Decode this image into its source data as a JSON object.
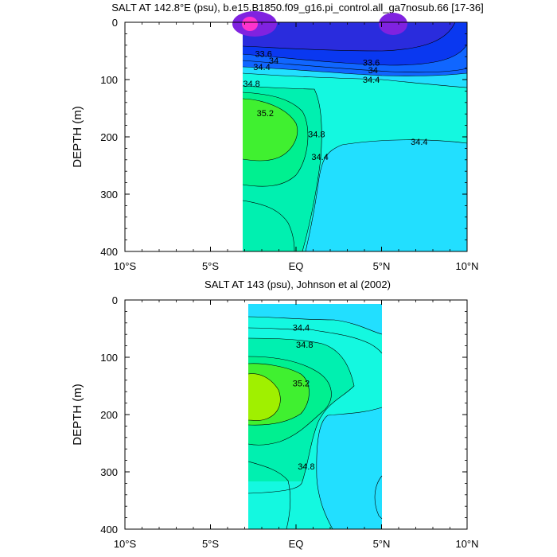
{
  "chart_data": [
    {
      "type": "contour",
      "title": "SALT AT 142.8°E (psu), b.e15.B1850.f09_g16.pi_control.all_ga7nosub.66 [17-36]",
      "xlabel": "",
      "ylabel": "DEPTH (m)",
      "xlim": [
        -10,
        10
      ],
      "ylim": [
        400,
        0
      ],
      "x_tick_values": [
        -10,
        -5,
        0,
        5,
        10
      ],
      "x_tick_labels": [
        "10°S",
        "5°S",
        "EQ",
        "5°N",
        "10°N"
      ],
      "y_tick_values": [
        0,
        100,
        200,
        300,
        400
      ],
      "y_tick_labels": [
        "0",
        "100",
        "200",
        "300",
        "400"
      ],
      "data_extent_x": [
        -3.1,
        9.9
      ],
      "data_extent_y": [
        0,
        400
      ],
      "grid": false,
      "contour_interval": 0.2,
      "contour_labels": [
        {
          "text": "33.6",
          "x": -1.9,
          "y": 55
        },
        {
          "text": "34",
          "x": -1.3,
          "y": 67
        },
        {
          "text": "34.4",
          "x": -2.0,
          "y": 78
        },
        {
          "text": "34.8",
          "x": -2.6,
          "y": 107
        },
        {
          "text": "33.6",
          "x": 4.4,
          "y": 70
        },
        {
          "text": "34",
          "x": 4.5,
          "y": 83
        },
        {
          "text": "34.4",
          "x": 4.4,
          "y": 100
        },
        {
          "text": "35.2",
          "x": -1.8,
          "y": 158
        },
        {
          "text": "34.8",
          "x": 1.2,
          "y": 195
        },
        {
          "text": "34.4",
          "x": 1.4,
          "y": 235
        },
        {
          "text": "34.4",
          "x": 7.2,
          "y": 208
        }
      ],
      "fill_colors": [
        "#ff33cc",
        "#8022e0",
        "#2a2cdd",
        "#0a38f0",
        "#1066ff",
        "#16a8ff",
        "#22dfff",
        "#14f8e0",
        "#00f0b0",
        "#00f090",
        "#40f030"
      ]
    },
    {
      "type": "contour",
      "title": "SALT AT 143 (psu), Johnson et al (2002)",
      "xlabel": "",
      "ylabel": "DEPTH (m)",
      "xlim": [
        -10,
        10
      ],
      "ylim": [
        400,
        0
      ],
      "x_tick_values": [
        -10,
        -5,
        0,
        5,
        10
      ],
      "x_tick_labels": [
        "10°S",
        "5°S",
        "EQ",
        "5°N",
        "10°N"
      ],
      "y_tick_values": [
        0,
        100,
        200,
        300,
        400
      ],
      "y_tick_labels": [
        "0",
        "100",
        "200",
        "300",
        "400"
      ],
      "data_extent_x": [
        -2.9,
        5.0
      ],
      "data_extent_y": [
        5,
        400
      ],
      "grid": false,
      "contour_interval": 0.2,
      "contour_labels": [
        {
          "text": "34.4",
          "x": 0.3,
          "y": 48
        },
        {
          "text": "34.8",
          "x": 0.5,
          "y": 78
        },
        {
          "text": "35.2",
          "x": 0.3,
          "y": 145
        },
        {
          "text": "34.8",
          "x": 0.6,
          "y": 290
        }
      ],
      "fill_colors": [
        "#22dfff",
        "#14f8e0",
        "#00f0b0",
        "#00f090",
        "#40f030",
        "#a0f000"
      ]
    }
  ]
}
